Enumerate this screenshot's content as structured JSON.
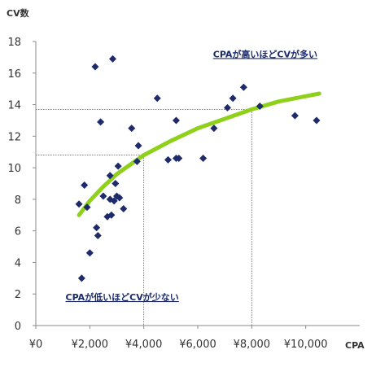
{
  "chart_data": {
    "type": "scatter",
    "xlabel": "CPA",
    "ylabel": "CV数",
    "xlim": [
      0,
      12000
    ],
    "ylim": [
      0,
      18
    ],
    "x_ticks": [
      {
        "value": 0,
        "label": "¥0"
      },
      {
        "value": 2000,
        "label": "¥2,000"
      },
      {
        "value": 4000,
        "label": "¥4,000"
      },
      {
        "value": 6000,
        "label": "¥6,000"
      },
      {
        "value": 8000,
        "label": "¥8,000"
      },
      {
        "value": 10000,
        "label": "¥10,000"
      }
    ],
    "y_ticks": [
      {
        "value": 0,
        "label": "0"
      },
      {
        "value": 2,
        "label": "2"
      },
      {
        "value": 4,
        "label": "4"
      },
      {
        "value": 6,
        "label": "6"
      },
      {
        "value": 8,
        "label": "8"
      },
      {
        "value": 10,
        "label": "10"
      },
      {
        "value": 12,
        "label": "12"
      },
      {
        "value": 14,
        "label": "14"
      },
      {
        "value": 16,
        "label": "16"
      },
      {
        "value": 18,
        "label": "18"
      }
    ],
    "grid": false,
    "marker": "diamond",
    "marker_color": "#1f2a6b",
    "trend_color": "#8fd11a",
    "points": [
      {
        "x": 1600,
        "y": 7.7
      },
      {
        "x": 1700,
        "y": 3.0
      },
      {
        "x": 1800,
        "y": 8.9
      },
      {
        "x": 1900,
        "y": 7.5
      },
      {
        "x": 2000,
        "y": 4.6
      },
      {
        "x": 2200,
        "y": 16.4
      },
      {
        "x": 2250,
        "y": 6.2
      },
      {
        "x": 2300,
        "y": 5.7
      },
      {
        "x": 2400,
        "y": 12.9
      },
      {
        "x": 2500,
        "y": 8.2
      },
      {
        "x": 2650,
        "y": 6.9
      },
      {
        "x": 2750,
        "y": 9.5
      },
      {
        "x": 2750,
        "y": 8.0
      },
      {
        "x": 2800,
        "y": 7.0
      },
      {
        "x": 2850,
        "y": 16.9
      },
      {
        "x": 2900,
        "y": 7.9
      },
      {
        "x": 2950,
        "y": 9.0
      },
      {
        "x": 3000,
        "y": 8.2
      },
      {
        "x": 3050,
        "y": 10.1
      },
      {
        "x": 3100,
        "y": 8.1
      },
      {
        "x": 3250,
        "y": 7.4
      },
      {
        "x": 3550,
        "y": 12.5
      },
      {
        "x": 3750,
        "y": 10.4
      },
      {
        "x": 3800,
        "y": 11.4
      },
      {
        "x": 4500,
        "y": 14.4
      },
      {
        "x": 4900,
        "y": 10.5
      },
      {
        "x": 5200,
        "y": 13.0
      },
      {
        "x": 5200,
        "y": 10.6
      },
      {
        "x": 5300,
        "y": 10.6
      },
      {
        "x": 6200,
        "y": 10.6
      },
      {
        "x": 6600,
        "y": 12.5
      },
      {
        "x": 7100,
        "y": 13.8
      },
      {
        "x": 7300,
        "y": 14.4
      },
      {
        "x": 7700,
        "y": 15.1
      },
      {
        "x": 8300,
        "y": 13.9
      },
      {
        "x": 9600,
        "y": 13.3
      },
      {
        "x": 10400,
        "y": 13.0
      }
    ],
    "trend": {
      "type": "log",
      "points": [
        {
          "x": 1600,
          "y": 7.0
        },
        {
          "x": 2000,
          "y": 7.9
        },
        {
          "x": 2500,
          "y": 8.8
        },
        {
          "x": 3000,
          "y": 9.6
        },
        {
          "x": 4000,
          "y": 10.8
        },
        {
          "x": 5000,
          "y": 11.7
        },
        {
          "x": 6000,
          "y": 12.5
        },
        {
          "x": 7000,
          "y": 13.1
        },
        {
          "x": 8000,
          "y": 13.7
        },
        {
          "x": 9000,
          "y": 14.2
        },
        {
          "x": 10500,
          "y": 14.7
        }
      ]
    },
    "reference_lines": [
      {
        "x": 4000,
        "y": 10.8
      },
      {
        "x": 8000,
        "y": 13.7
      }
    ],
    "annotations": [
      {
        "text": "CPAが高いほどCVが多い",
        "x": 8500,
        "y": 17.0
      },
      {
        "text": "CPAが低いほどCVが少ない",
        "x": 3200,
        "y": 1.6
      }
    ]
  }
}
